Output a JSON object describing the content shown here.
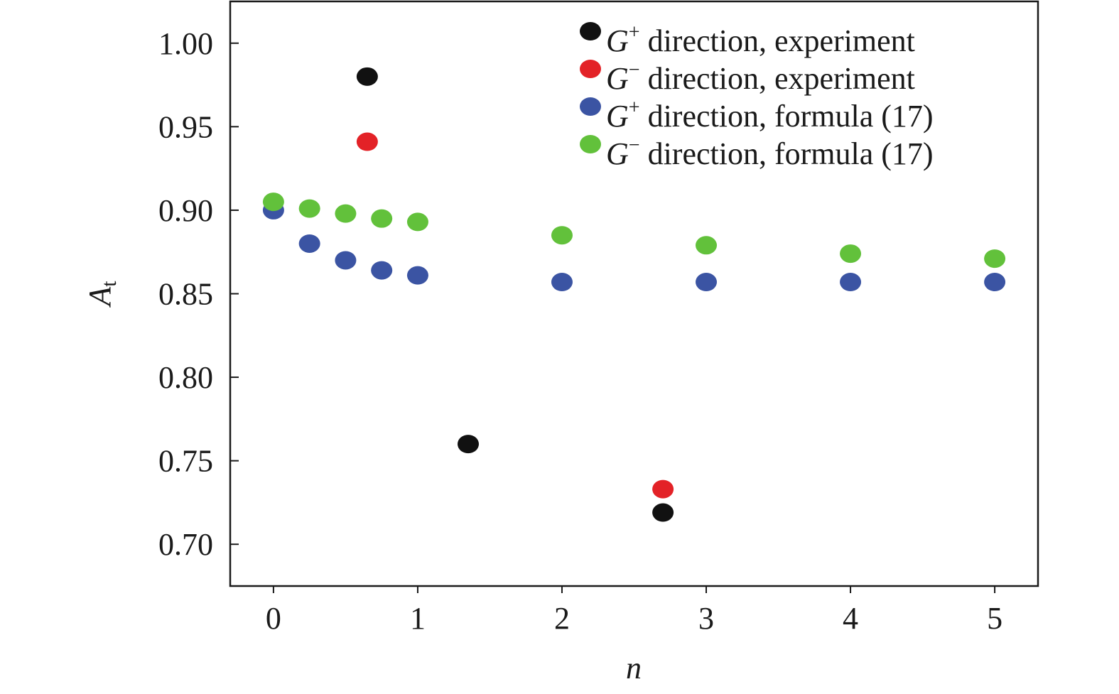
{
  "chart_data": {
    "type": "scatter",
    "xlabel": "n",
    "ylabel": {
      "main": "A",
      "subscript": "t"
    },
    "xlim": [
      -0.3,
      5.3
    ],
    "ylim": [
      0.675,
      1.025
    ],
    "xticks": [
      "0",
      "1",
      "2",
      "3",
      "4",
      "5"
    ],
    "xtick_values": [
      0,
      1,
      2,
      3,
      4,
      5
    ],
    "yticks": [
      "0.70",
      "0.75",
      "0.80",
      "0.85",
      "0.90",
      "0.95",
      "1.00"
    ],
    "ytick_values": [
      0.7,
      0.75,
      0.8,
      0.85,
      0.9,
      0.95,
      1.0
    ],
    "grid": false,
    "legend_position": "top-right",
    "series": [
      {
        "name": "G+ direction, experiment",
        "symbol": "G",
        "superscript": "+",
        "rest": " direction, experiment",
        "color": "#111111",
        "points": [
          [
            0.65,
            0.98
          ],
          [
            1.35,
            0.76
          ],
          [
            2.7,
            0.719
          ]
        ]
      },
      {
        "name": "G− direction, experiment",
        "symbol": "G",
        "superscript": "−",
        "rest": " direction, experiment",
        "color": "#e32227",
        "points": [
          [
            0.65,
            0.941
          ],
          [
            2.7,
            0.733
          ]
        ]
      },
      {
        "name": "G+ direction, formula (17)",
        "symbol": "G",
        "superscript": "+",
        "rest": " direction, formula (17)",
        "color": "#3b54a3",
        "points": [
          [
            0,
            0.9
          ],
          [
            0.25,
            0.88
          ],
          [
            0.5,
            0.87
          ],
          [
            0.75,
            0.864
          ],
          [
            1,
            0.861
          ],
          [
            2,
            0.857
          ],
          [
            3,
            0.857
          ],
          [
            4,
            0.857
          ],
          [
            5,
            0.857
          ]
        ]
      },
      {
        "name": "G− direction, formula (17)",
        "symbol": "G",
        "superscript": "−",
        "rest": " direction, formula (17)",
        "color": "#62c13b",
        "points": [
          [
            0,
            0.905
          ],
          [
            0.25,
            0.901
          ],
          [
            0.5,
            0.898
          ],
          [
            0.75,
            0.895
          ],
          [
            1,
            0.893
          ],
          [
            2,
            0.885
          ],
          [
            3,
            0.879
          ],
          [
            4,
            0.874
          ],
          [
            5,
            0.871
          ]
        ]
      }
    ]
  }
}
